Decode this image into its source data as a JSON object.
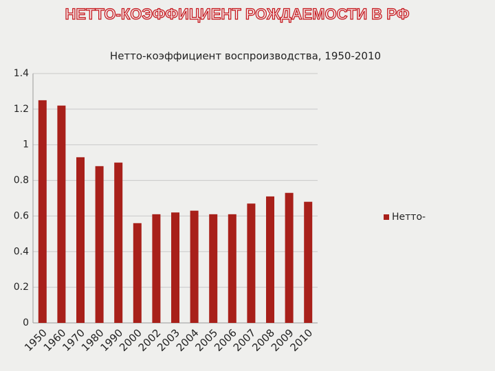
{
  "heading": "НЕТТО-КОЭФФИЦИЕНТ РОЖДАЕМОСТИ  В РФ",
  "chart_data": {
    "type": "bar",
    "title": "Нетто-коэффициент воспроизводства, 1950-2010",
    "categories": [
      "1950",
      "1960",
      "1970",
      "1980",
      "1990",
      "2000",
      "2002",
      "2003",
      "2004",
      "2005",
      "2006",
      "2007",
      "2008",
      "2009",
      "2010"
    ],
    "series": [
      {
        "name": "Нетто-",
        "color": "#a8201a",
        "values": [
          1.25,
          1.22,
          0.93,
          0.88,
          0.9,
          0.56,
          0.61,
          0.62,
          0.63,
          0.61,
          0.61,
          0.67,
          0.71,
          0.73,
          0.68
        ]
      }
    ],
    "ylim": [
      0,
      1.4
    ],
    "yticks": [
      0,
      0.2,
      0.4,
      0.6,
      0.8,
      1,
      1.2,
      1.4
    ],
    "grid": true,
    "legend": "right"
  }
}
